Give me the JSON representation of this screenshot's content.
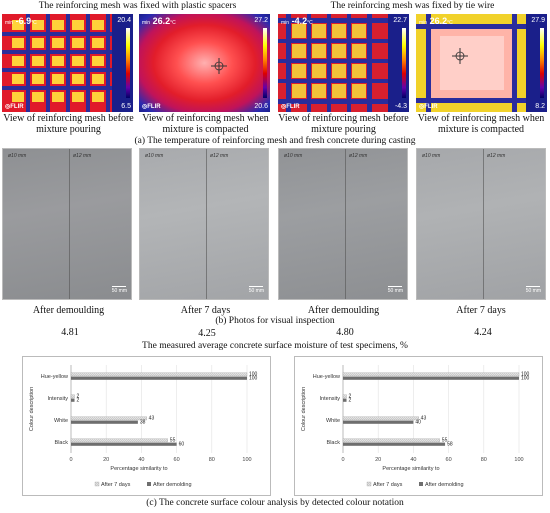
{
  "section_a": {
    "label_spacers": "The reinforcing mesh was fixed with plastic spacers",
    "label_tiewire": "The reinforcing mesh was fixed by tie wire",
    "caption": "(a) The temperature of reinforcing mesh and fresh concrete during casting",
    "images": [
      {
        "temp": "-6.9",
        "min_label": "min",
        "unit": "°C",
        "scale_max": "20.4",
        "scale_min": "6.5",
        "logo": "FLIR",
        "caption": "View of reinforcing mesh before mixture pouring"
      },
      {
        "temp": "26.2",
        "min_label": "min",
        "unit": "°C",
        "scale_max": "27.2",
        "scale_min": "20.6",
        "logo": "FLIR",
        "caption": "View of reinforcing mesh when mixture is compacted"
      },
      {
        "temp": "-4.2",
        "min_label": "min",
        "unit": "°C",
        "scale_max": "22.7",
        "scale_min": "-4.3",
        "logo": "FLIR",
        "caption": "View of reinforcing mesh before mixture pouring"
      },
      {
        "temp": "26.2",
        "min_label": "min",
        "unit": "°C",
        "scale_max": "27.9",
        "scale_min": "8.2",
        "logo": "FLIR",
        "caption": "View of reinforcing mesh when mixture is compacted"
      }
    ]
  },
  "section_b": {
    "caption": "(b) Photos for visual inspection",
    "photos": [
      {
        "label_left": "ø10 mm",
        "label_right": "ø12 mm",
        "scale": "50 mm",
        "caption": "After demoulding",
        "moisture": "4.81"
      },
      {
        "label_left": "ø10 mm",
        "label_right": "ø12 mm",
        "scale": "50 mm",
        "caption": "After 7 days",
        "moisture": "4.25"
      },
      {
        "label_left": "ø10 mm",
        "label_right": "ø12 mm",
        "scale": "50 mm",
        "caption": "After demoulding",
        "moisture": "4.80"
      },
      {
        "label_left": "ø10 mm",
        "label_right": "ø12 mm",
        "scale": "50 mm",
        "caption": "After 7 days",
        "moisture": "4.24"
      }
    ],
    "moisture_title": "The measured average concrete surface moisture of test specimens, %"
  },
  "section_c": {
    "caption": "(c) The concrete surface colour analysis by detected colour notation"
  },
  "chart_data": [
    {
      "type": "bar",
      "orientation": "horizontal",
      "categories": [
        "Hue-yellow",
        "Intensity",
        "White",
        "Black"
      ],
      "series": [
        {
          "name": "After 7 days",
          "values": [
            100,
            2,
            43,
            55
          ],
          "color": "#bdbdbd"
        },
        {
          "name": "After demolding",
          "values": [
            100,
            2,
            38,
            60
          ],
          "color": "#6e6e6e"
        }
      ],
      "xlabel": "Percentage similarity to",
      "ylabel": "Colour description",
      "xlim": [
        0,
        100
      ],
      "xticks": [
        "0",
        "20",
        "40",
        "60",
        "80",
        "100"
      ],
      "grid": true,
      "legend": "bottom"
    },
    {
      "type": "bar",
      "orientation": "horizontal",
      "categories": [
        "Hue-yellow",
        "Intensity",
        "White",
        "Black"
      ],
      "series": [
        {
          "name": "After 7 days",
          "values": [
            100,
            2,
            43,
            55
          ],
          "color": "#bdbdbd"
        },
        {
          "name": "After demolding",
          "values": [
            100,
            2,
            40,
            58
          ],
          "color": "#6e6e6e"
        }
      ],
      "xlabel": "Percentage similarity to",
      "ylabel": "Colour description",
      "xlim": [
        0,
        100
      ],
      "xticks": [
        "0",
        "20",
        "40",
        "60",
        "80",
        "100"
      ],
      "grid": true,
      "legend": "bottom"
    }
  ]
}
